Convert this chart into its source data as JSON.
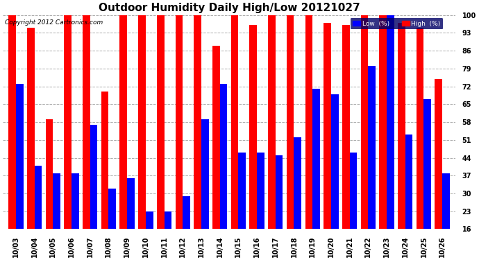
{
  "title": "Outdoor Humidity Daily High/Low 20121027",
  "copyright": "Copyright 2012 Cartronics.com",
  "dates": [
    "10/03",
    "10/04",
    "10/05",
    "10/06",
    "10/07",
    "10/08",
    "10/09",
    "10/10",
    "10/11",
    "10/12",
    "10/13",
    "10/14",
    "10/15",
    "10/16",
    "10/17",
    "10/18",
    "10/19",
    "10/20",
    "10/21",
    "10/22",
    "10/23",
    "10/24",
    "10/25",
    "10/26"
  ],
  "high": [
    100,
    95,
    59,
    100,
    100,
    70,
    100,
    100,
    100,
    100,
    100,
    88,
    100,
    96,
    100,
    100,
    100,
    97,
    96,
    100,
    100,
    97,
    95,
    75
  ],
  "low": [
    73,
    41,
    38,
    38,
    57,
    32,
    36,
    23,
    23,
    29,
    59,
    73,
    46,
    46,
    45,
    52,
    71,
    69,
    46,
    80,
    100,
    53,
    67,
    38
  ],
  "high_color": "#ff0000",
  "low_color": "#0000ff",
  "bg_color": "#ffffff",
  "grid_color": "#aaaaaa",
  "ylim_min": 16,
  "ylim_max": 100,
  "yticks": [
    16,
    23,
    30,
    37,
    44,
    51,
    58,
    65,
    72,
    79,
    86,
    93,
    100
  ],
  "bar_width": 0.4,
  "title_fontsize": 11,
  "tick_fontsize": 7,
  "legend_low_label": "Low  (%)",
  "legend_high_label": "High  (%)"
}
